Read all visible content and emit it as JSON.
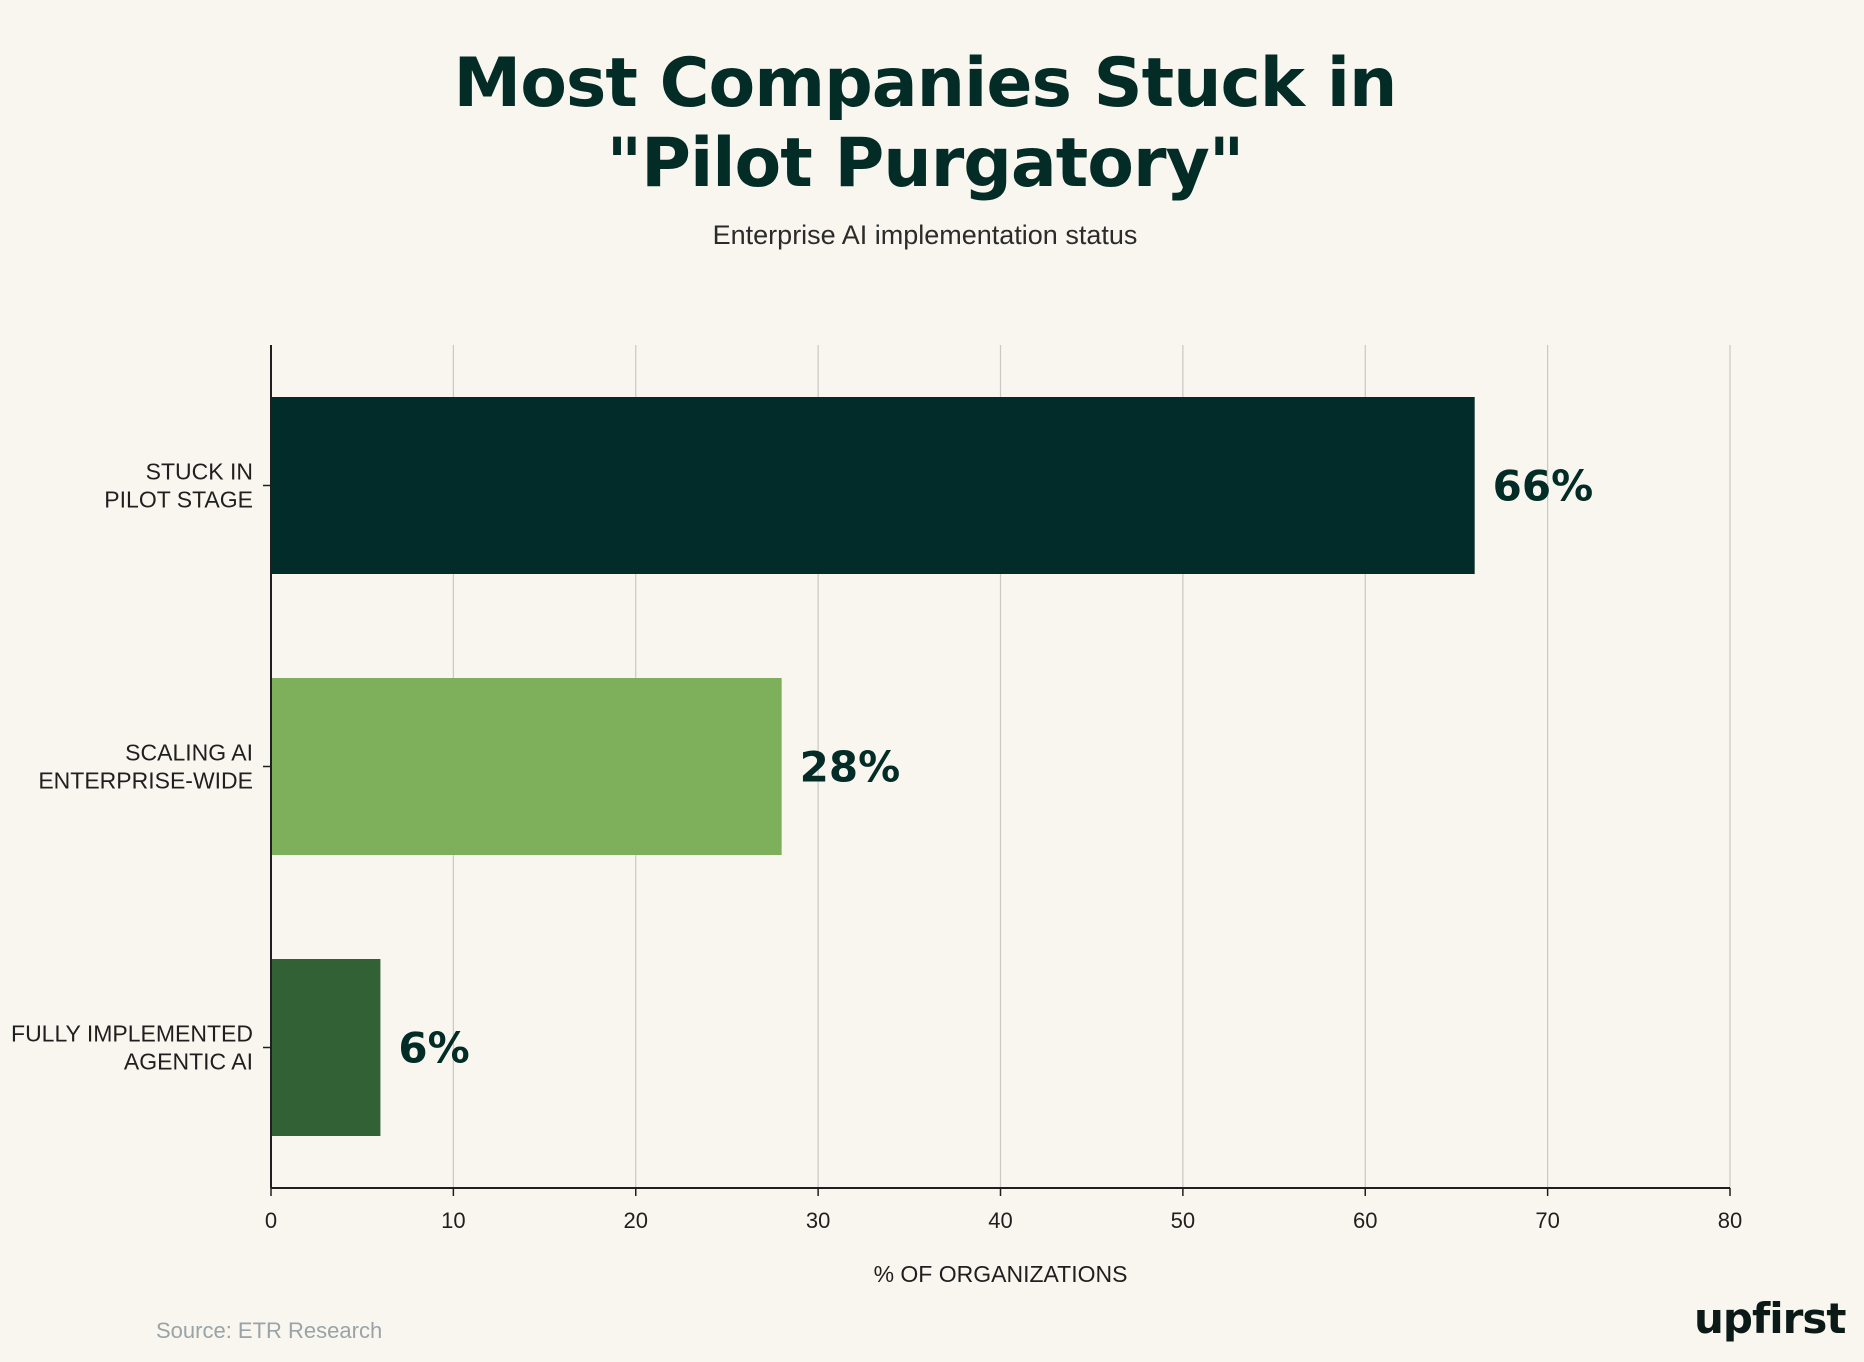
{
  "chart_data": {
    "type": "bar",
    "orientation": "horizontal",
    "title": "Most Companies Stuck in \"Pilot Purgatory\"",
    "title_lines": [
      "Most Companies Stuck in",
      "\"Pilot Purgatory\""
    ],
    "subtitle": "Enterprise AI implementation status",
    "categories": [
      [
        "STUCK IN",
        "PILOT STAGE"
      ],
      [
        "SCALING AI",
        "ENTERPRISE-WIDE"
      ],
      [
        "FULLY IMPLEMENTED",
        "AGENTIC AI"
      ]
    ],
    "values": [
      66,
      28,
      6
    ],
    "value_labels": [
      "66%",
      "28%",
      "6%"
    ],
    "colors": [
      "#022c29",
      "#7eb05c",
      "#336136"
    ],
    "xlabel": "% OF ORGANIZATIONS",
    "ylabel": "",
    "xlim": [
      0,
      80
    ],
    "xticks": [
      "0",
      "10",
      "20",
      "30",
      "40",
      "50",
      "60",
      "70",
      "80"
    ],
    "grid": "vertical"
  },
  "footer": {
    "source": "Source: ETR Research",
    "logo": "upfirst"
  }
}
